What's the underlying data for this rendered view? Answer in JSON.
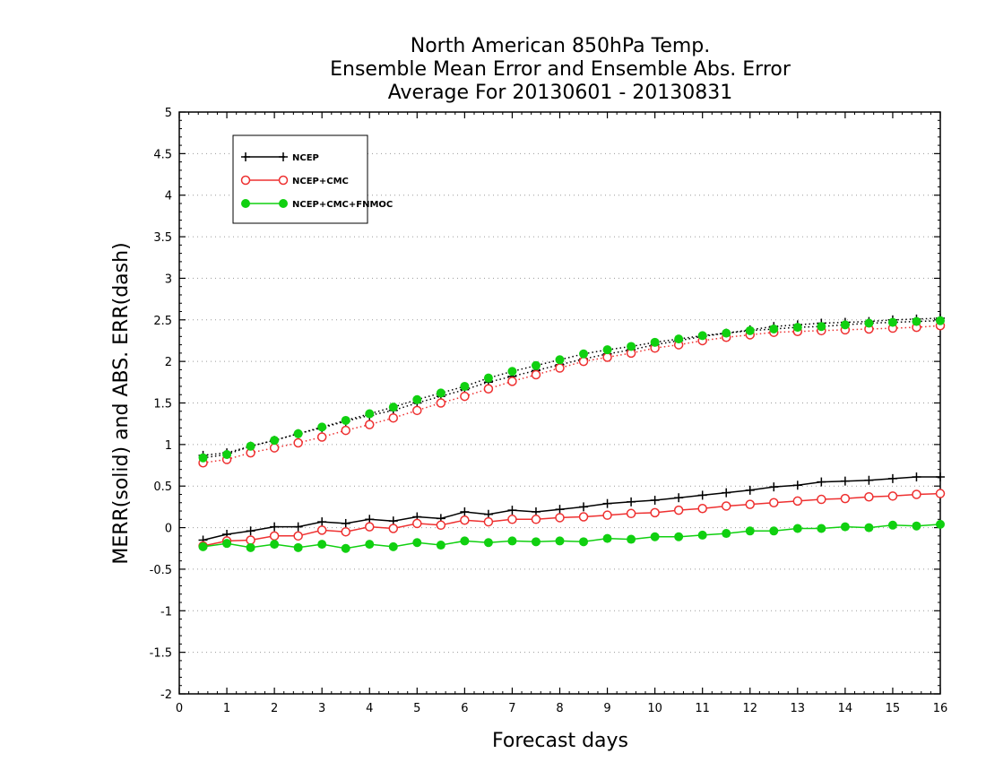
{
  "chart_data": {
    "type": "line",
    "title_lines": [
      "North American 850hPa Temp.",
      "Ensemble Mean Error and Ensemble Abs. Error",
      "Average For 20130601 - 20130831"
    ],
    "xlabel": "Forecast days",
    "ylabel": "MERR(solid) and ABS. ERR(dash)",
    "xlim": [
      0,
      16
    ],
    "ylim": [
      -2,
      5
    ],
    "xticks": [
      "0",
      "1",
      "2",
      "3",
      "4",
      "5",
      "6",
      "7",
      "8",
      "9",
      "10",
      "11",
      "12",
      "13",
      "14",
      "15",
      "16"
    ],
    "yticks": [
      "5",
      "4.5",
      "4",
      "3.5",
      "3",
      "2.5",
      "2",
      "1.5",
      "1",
      "0.5",
      "0",
      "-0.5",
      "-1",
      "-1.5",
      "-2"
    ],
    "grid": "horizontal dotted",
    "legend_position": "top-left",
    "x": [
      0.5,
      1,
      1.5,
      2,
      2.5,
      3,
      3.5,
      4,
      4.5,
      5,
      5.5,
      6,
      6.5,
      7,
      7.5,
      8,
      8.5,
      9,
      9.5,
      10,
      10.5,
      11,
      11.5,
      12,
      12.5,
      13,
      13.5,
      14,
      14.5,
      15,
      15.5,
      16
    ],
    "series": [
      {
        "name": "NCEP",
        "color": "#000000",
        "marker": "plus",
        "mean_error": [
          -0.15,
          -0.08,
          -0.04,
          0.01,
          0.01,
          0.07,
          0.05,
          0.1,
          0.08,
          0.13,
          0.11,
          0.19,
          0.16,
          0.21,
          0.19,
          0.22,
          0.25,
          0.29,
          0.31,
          0.33,
          0.36,
          0.39,
          0.42,
          0.45,
          0.49,
          0.51,
          0.55,
          0.56,
          0.57,
          0.59,
          0.61,
          0.61
        ],
        "abs_error": [
          0.87,
          0.9,
          0.98,
          1.05,
          1.13,
          1.2,
          1.28,
          1.35,
          1.41,
          1.5,
          1.58,
          1.66,
          1.75,
          1.82,
          1.89,
          1.96,
          2.03,
          2.09,
          2.14,
          2.2,
          2.25,
          2.3,
          2.34,
          2.38,
          2.42,
          2.44,
          2.46,
          2.47,
          2.48,
          2.5,
          2.51,
          2.52
        ]
      },
      {
        "name": "NCEP+CMC",
        "color": "#ee3030",
        "marker": "open-circle",
        "mean_error": [
          -0.22,
          -0.16,
          -0.15,
          -0.1,
          -0.1,
          -0.03,
          -0.05,
          0.01,
          -0.01,
          0.05,
          0.03,
          0.09,
          0.07,
          0.1,
          0.1,
          0.12,
          0.13,
          0.15,
          0.17,
          0.18,
          0.21,
          0.23,
          0.26,
          0.28,
          0.3,
          0.32,
          0.34,
          0.35,
          0.37,
          0.38,
          0.4,
          0.41
        ],
        "abs_error": [
          0.78,
          0.82,
          0.9,
          0.96,
          1.02,
          1.09,
          1.17,
          1.24,
          1.32,
          1.41,
          1.5,
          1.58,
          1.67,
          1.76,
          1.84,
          1.92,
          2.0,
          2.05,
          2.1,
          2.16,
          2.2,
          2.25,
          2.29,
          2.32,
          2.35,
          2.36,
          2.37,
          2.38,
          2.39,
          2.4,
          2.41,
          2.43
        ]
      },
      {
        "name": "NCEP+CMC+FNMOC",
        "color": "#10d010",
        "marker": "filled-circle",
        "mean_error": [
          -0.23,
          -0.19,
          -0.24,
          -0.2,
          -0.24,
          -0.2,
          -0.25,
          -0.2,
          -0.23,
          -0.18,
          -0.21,
          -0.16,
          -0.18,
          -0.16,
          -0.17,
          -0.16,
          -0.17,
          -0.13,
          -0.14,
          -0.11,
          -0.11,
          -0.09,
          -0.07,
          -0.04,
          -0.04,
          -0.01,
          -0.01,
          0.01,
          0.0,
          0.03,
          0.02,
          0.04
        ],
        "abs_error": [
          0.84,
          0.88,
          0.98,
          1.05,
          1.13,
          1.21,
          1.29,
          1.37,
          1.45,
          1.54,
          1.62,
          1.7,
          1.8,
          1.88,
          1.95,
          2.02,
          2.09,
          2.14,
          2.18,
          2.23,
          2.27,
          2.31,
          2.34,
          2.37,
          2.39,
          2.41,
          2.42,
          2.44,
          2.46,
          2.47,
          2.48,
          2.49
        ]
      }
    ]
  }
}
